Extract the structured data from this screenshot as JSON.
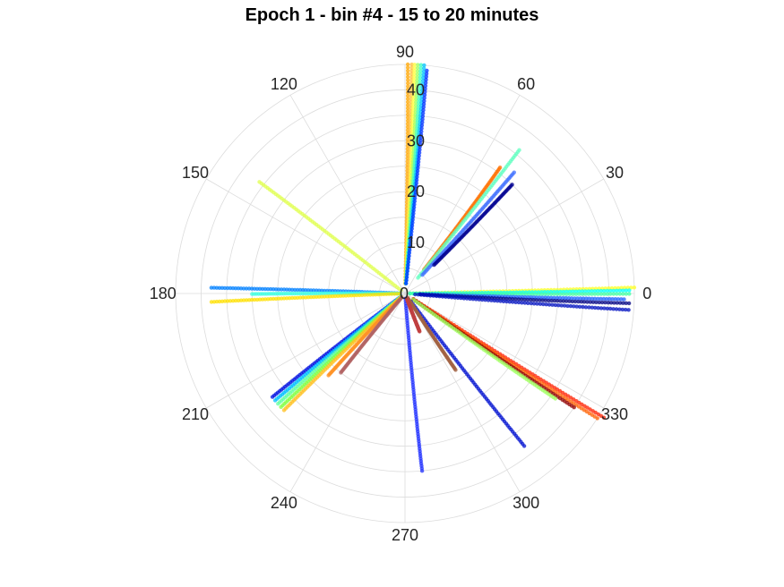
{
  "chart_data": {
    "type": "scatter",
    "subtype": "polar",
    "title": "Epoch 1 - bin #4 - 15 to 20 minutes",
    "theta_unit": "degrees",
    "theta_ticks": [
      0,
      30,
      60,
      90,
      120,
      150,
      180,
      210,
      240,
      270,
      300,
      330
    ],
    "r_ticks": [
      0,
      10,
      20,
      30,
      40
    ],
    "rlim": [
      0,
      45
    ],
    "grid": true,
    "colormap": "jet",
    "tracks": [
      {
        "angle_deg": [
          88.5,
          89.3
        ],
        "r_range": [
          2,
          45
        ],
        "color": "#ffa500"
      },
      {
        "angle_deg": [
          88.0,
          88.3
        ],
        "r_range": [
          2,
          45
        ],
        "color": "#ffc040"
      },
      {
        "angle_deg": [
          87.0,
          87.6
        ],
        "r_range": [
          2,
          45
        ],
        "color": "#ffff40"
      },
      {
        "angle_deg": [
          86.2,
          86.8
        ],
        "r_range": [
          2,
          45
        ],
        "color": "#a0ff60"
      },
      {
        "angle_deg": [
          85.4,
          86.0
        ],
        "r_range": [
          2,
          45
        ],
        "color": "#40ffc0"
      },
      {
        "angle_deg": [
          84.5,
          85.2
        ],
        "r_range": [
          2,
          45
        ],
        "color": "#00c0ff"
      },
      {
        "angle_deg": [
          83.8,
          84.4
        ],
        "r_range": [
          2,
          44
        ],
        "color": "#0030ff"
      },
      {
        "angle_deg": [
          51.5,
          53.0
        ],
        "r_range": [
          6,
          31
        ],
        "color": "#ff7000"
      },
      {
        "angle_deg": [
          50.5,
          51.5
        ],
        "r_range": [
          4,
          36
        ],
        "color": "#60ffc0"
      },
      {
        "angle_deg": [
          47.0,
          48.0
        ],
        "r_range": [
          5,
          32
        ],
        "color": "#4070ff"
      },
      {
        "angle_deg": [
          44.5,
          45.5
        ],
        "r_range": [
          8,
          30
        ],
        "color": "#000090"
      },
      {
        "angle_deg": [
          141.5,
          142.5
        ],
        "r_range": [
          1,
          36
        ],
        "color": "#e0ff50"
      },
      {
        "angle_deg": [
          1.2,
          1.5
        ],
        "r_range": [
          1,
          45
        ],
        "color": "#ffff20"
      },
      {
        "angle_deg": [
          0.4,
          0.8
        ],
        "r_range": [
          1,
          44
        ],
        "color": "#00ffff"
      },
      {
        "angle_deg": [
          -0.5,
          -0.1
        ],
        "r_range": [
          1,
          44
        ],
        "color": "#40ffa0"
      },
      {
        "angle_deg": [
          -2.0,
          -1.5
        ],
        "r_range": [
          3,
          43
        ],
        "color": "#2060ff"
      },
      {
        "angle_deg": [
          -3.3,
          -2.5
        ],
        "r_range": [
          3,
          44
        ],
        "color": "#000080"
      },
      {
        "angle_deg": [
          -4.8,
          -4.2
        ],
        "r_range": [
          2,
          44
        ],
        "color": "#0010c0"
      },
      {
        "angle_deg": [
          177.8,
          178.3
        ],
        "r_range": [
          1,
          38
        ],
        "color": "#0080ff"
      },
      {
        "angle_deg": [
          179.6,
          180.2
        ],
        "r_range": [
          1,
          30
        ],
        "color": "#40ffe0"
      },
      {
        "angle_deg": [
          182.0,
          182.5
        ],
        "r_range": [
          1,
          38
        ],
        "color": "#ffe000"
      },
      {
        "angle_deg": [
          -33.0,
          -32.0
        ],
        "r_range": [
          2,
          46
        ],
        "color": "#ff2000"
      },
      {
        "angle_deg": [
          -34.0,
          -33.0
        ],
        "r_range": [
          2,
          45
        ],
        "color": "#ff6000"
      },
      {
        "angle_deg": [
          -35.0,
          -34.0
        ],
        "r_range": [
          2,
          40
        ],
        "color": "#900000"
      },
      {
        "angle_deg": [
          -36.0,
          -35.0
        ],
        "r_range": [
          2,
          36
        ],
        "color": "#a0ff60"
      },
      {
        "angle_deg": [
          -53.0,
          -52.0
        ],
        "r_range": [
          2,
          38
        ],
        "color": "#0010d0"
      },
      {
        "angle_deg": [
          -85.5,
          -84.5
        ],
        "r_range": [
          1,
          35
        ],
        "color": "#2030ff"
      },
      {
        "angle_deg": [
          -57.5,
          -56.5
        ],
        "r_range": [
          1,
          18
        ],
        "color": "#a06040"
      },
      {
        "angle_deg": [
          -70.0,
          -69.0
        ],
        "r_range": [
          1,
          8
        ],
        "color": "#c04040"
      },
      {
        "angle_deg": [
          217.0,
          218.0
        ],
        "r_range": [
          1,
          33
        ],
        "color": "#0010e0"
      },
      {
        "angle_deg": [
          218.5,
          219.5
        ],
        "r_range": [
          1,
          33
        ],
        "color": "#00c0ff"
      },
      {
        "angle_deg": [
          220.0,
          221.0
        ],
        "r_range": [
          1,
          33
        ],
        "color": "#60ffa0"
      },
      {
        "angle_deg": [
          221.5,
          222.5
        ],
        "r_range": [
          1,
          33
        ],
        "color": "#80ff40"
      },
      {
        "angle_deg": [
          223.0,
          224.0
        ],
        "r_range": [
          1,
          33
        ],
        "color": "#ffc020"
      },
      {
        "angle_deg": [
          226.0,
          227.0
        ],
        "r_range": [
          2,
          22
        ],
        "color": "#ff9020"
      },
      {
        "angle_deg": [
          230.0,
          231.0
        ],
        "r_range": [
          1,
          20
        ],
        "color": "#b06060"
      }
    ]
  }
}
